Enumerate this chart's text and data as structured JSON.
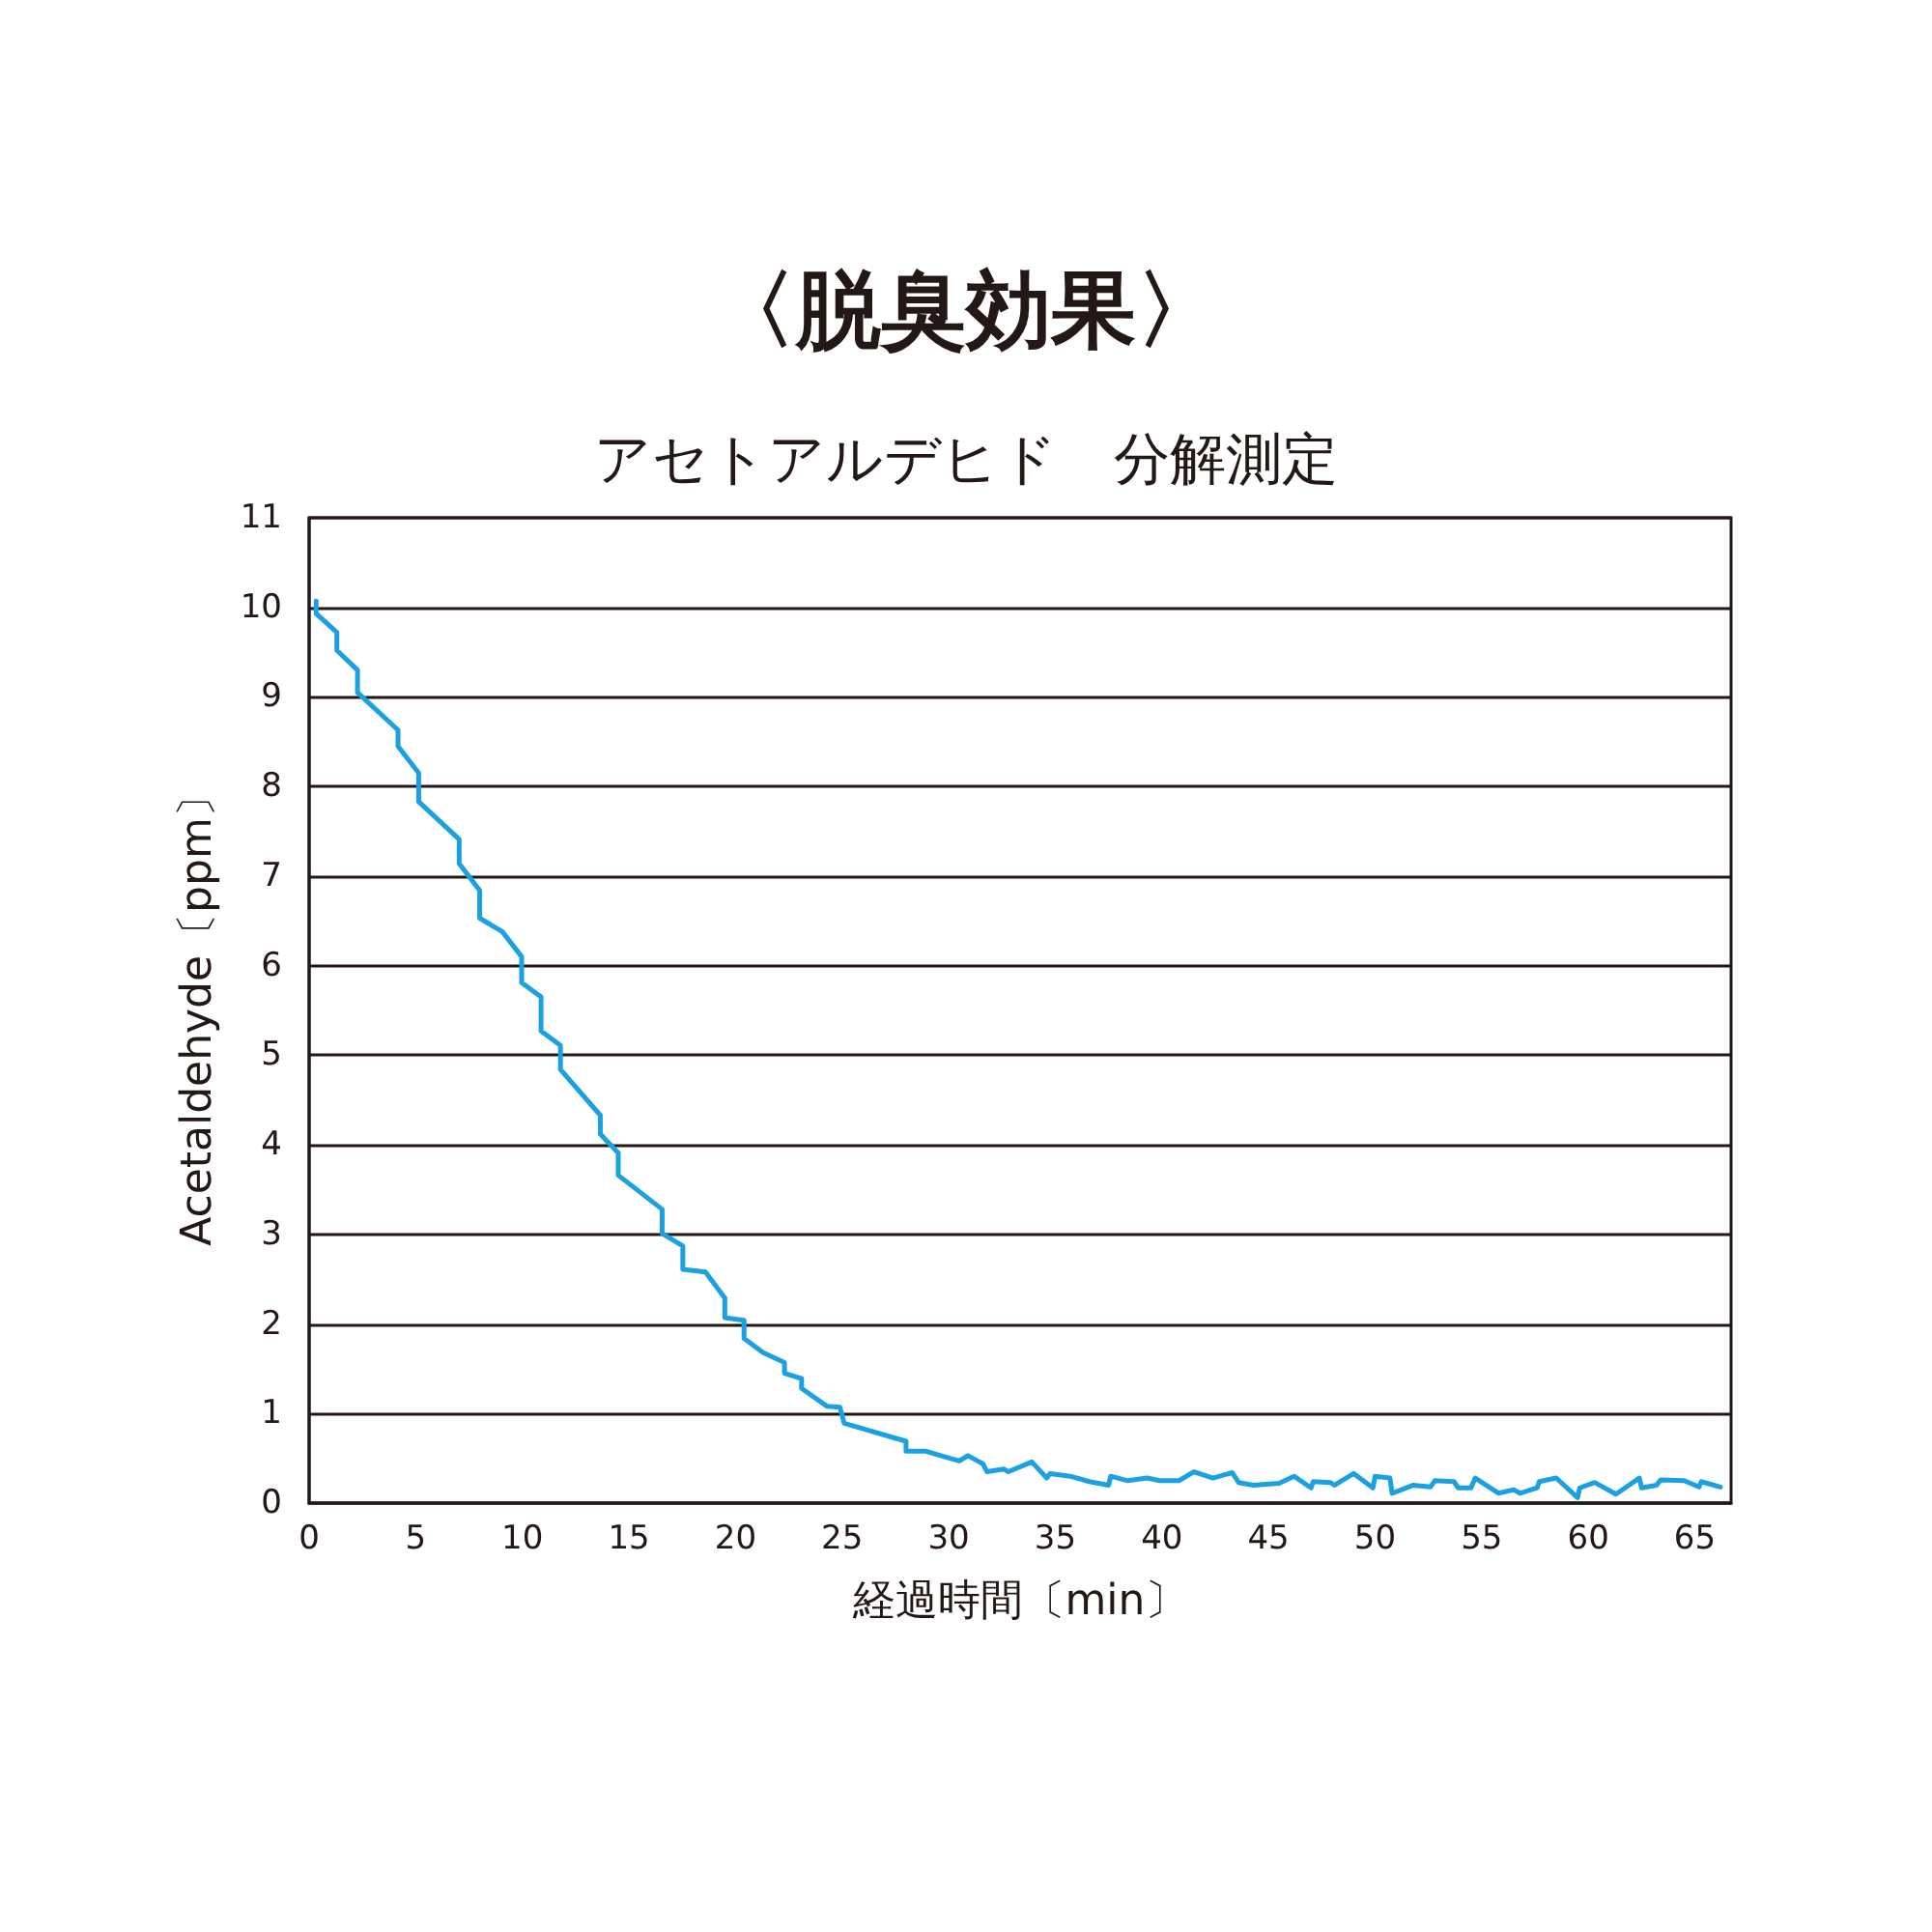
{
  "chart_data": {
    "type": "line",
    "title": "〈脱臭効果〉",
    "subtitle": "アセトアルデヒド　分解測定",
    "xlabel": "経過時間〔min〕",
    "ylabel": "Acetaldehyde〔ppm〕",
    "x": [
      0.33,
      0.33,
      1.3,
      1.3,
      2.27,
      2.27,
      4.17,
      4.17,
      5.14,
      5.14,
      7.04,
      7.04,
      8.0,
      8.0,
      9.06,
      9.97,
      9.97,
      10.88,
      10.88,
      11.79,
      11.79,
      13.66,
      13.66,
      14.5,
      14.5,
      16.56,
      16.56,
      17.53,
      17.53,
      18.59,
      19.5,
      19.5,
      20.4,
      20.4,
      21.3,
      22.3,
      22.3,
      23.1,
      23.1,
      24.3,
      24.9,
      25.1,
      28.0,
      28.0,
      28.9,
      29.9,
      30.5,
      30.9,
      31.6,
      31.8,
      32.6,
      32.8,
      33.9,
      34.6,
      34.75,
      35.7,
      36.6,
      37.5,
      37.6,
      38.4,
      39.3,
      39.9,
      40.8,
      41.5,
      42.4,
      43.3,
      43.6,
      44.3,
      45.5,
      46.2,
      47.0,
      47.1,
      47.9,
      48.1,
      49.0,
      49.9,
      50.0,
      50.7,
      50.8,
      51.8,
      52.6,
      52.8,
      53.7,
      53.9,
      54.5,
      54.7,
      55.8,
      56.5,
      56.8,
      57.6,
      57.7,
      58.5,
      59.5,
      59.6,
      60.3,
      61.3,
      62.4,
      62.5,
      63.2,
      63.4,
      64.5,
      65.2,
      65.3,
      66.2
    ],
    "values": [
      10.07,
      9.93,
      9.72,
      9.52,
      9.3,
      9.05,
      8.63,
      8.45,
      8.15,
      7.83,
      7.41,
      7.14,
      6.84,
      6.53,
      6.38,
      6.1,
      5.81,
      5.65,
      5.27,
      5.11,
      4.84,
      4.33,
      4.12,
      3.91,
      3.66,
      3.28,
      3.01,
      2.87,
      2.61,
      2.58,
      2.29,
      2.07,
      2.04,
      1.84,
      1.68,
      1.57,
      1.45,
      1.39,
      1.28,
      1.08,
      1.07,
      0.89,
      0.69,
      0.58,
      0.58,
      0.51,
      0.47,
      0.53,
      0.44,
      0.35,
      0.38,
      0.35,
      0.46,
      0.28,
      0.33,
      0.3,
      0.24,
      0.2,
      0.3,
      0.25,
      0.28,
      0.25,
      0.25,
      0.35,
      0.28,
      0.34,
      0.23,
      0.2,
      0.22,
      0.3,
      0.17,
      0.24,
      0.23,
      0.2,
      0.33,
      0.17,
      0.3,
      0.28,
      0.11,
      0.2,
      0.18,
      0.25,
      0.24,
      0.17,
      0.17,
      0.28,
      0.11,
      0.15,
      0.11,
      0.17,
      0.24,
      0.28,
      0.06,
      0.17,
      0.23,
      0.1,
      0.28,
      0.17,
      0.2,
      0.26,
      0.25,
      0.18,
      0.24,
      0.18
    ],
    "color": "#1ba1e2",
    "xlim": [
      0,
      66.7
    ],
    "xticks": [
      0,
      5,
      10,
      15,
      20,
      25,
      30,
      35,
      40,
      45,
      50,
      55,
      60,
      65
    ],
    "ylim": [
      0,
      11
    ],
    "yticks": [
      0,
      1,
      2,
      3,
      4,
      5,
      6,
      7,
      8,
      9,
      10,
      11
    ],
    "grid": "y",
    "marker": "none",
    "line_style": "solid"
  }
}
